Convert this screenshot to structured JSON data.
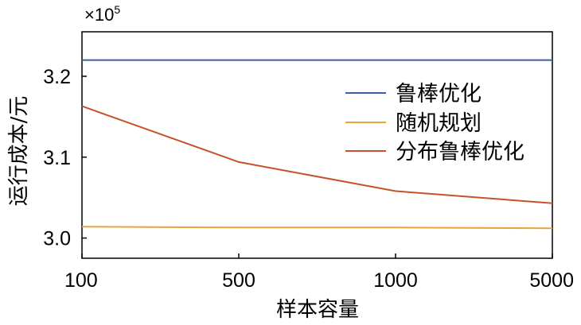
{
  "chart_data": {
    "type": "line",
    "x_categories": [
      "100",
      "500",
      "1000",
      "5000"
    ],
    "xlabel": "样本容量",
    "ylabel": "运行成本/元",
    "y_multiplier": {
      "base": "×10",
      "exp": "5"
    },
    "ylim": [
      2.975,
      3.255
    ],
    "yticks": [
      3.0,
      3.1,
      3.2
    ],
    "ytick_labels": [
      "3.0",
      "3.1",
      "3.2"
    ],
    "grid": false,
    "legend_position": "right",
    "series": [
      {
        "name": "鲁棒优化",
        "color": "#3d5ea6",
        "values": [
          3.22,
          3.22,
          3.22,
          3.22
        ]
      },
      {
        "name": "随机规划",
        "color": "#e8a33d",
        "values": [
          3.014,
          3.013,
          3.013,
          3.012
        ]
      },
      {
        "name": "分布鲁棒优化",
        "color": "#c8512c",
        "values": [
          3.163,
          3.094,
          3.058,
          3.043
        ]
      }
    ]
  }
}
